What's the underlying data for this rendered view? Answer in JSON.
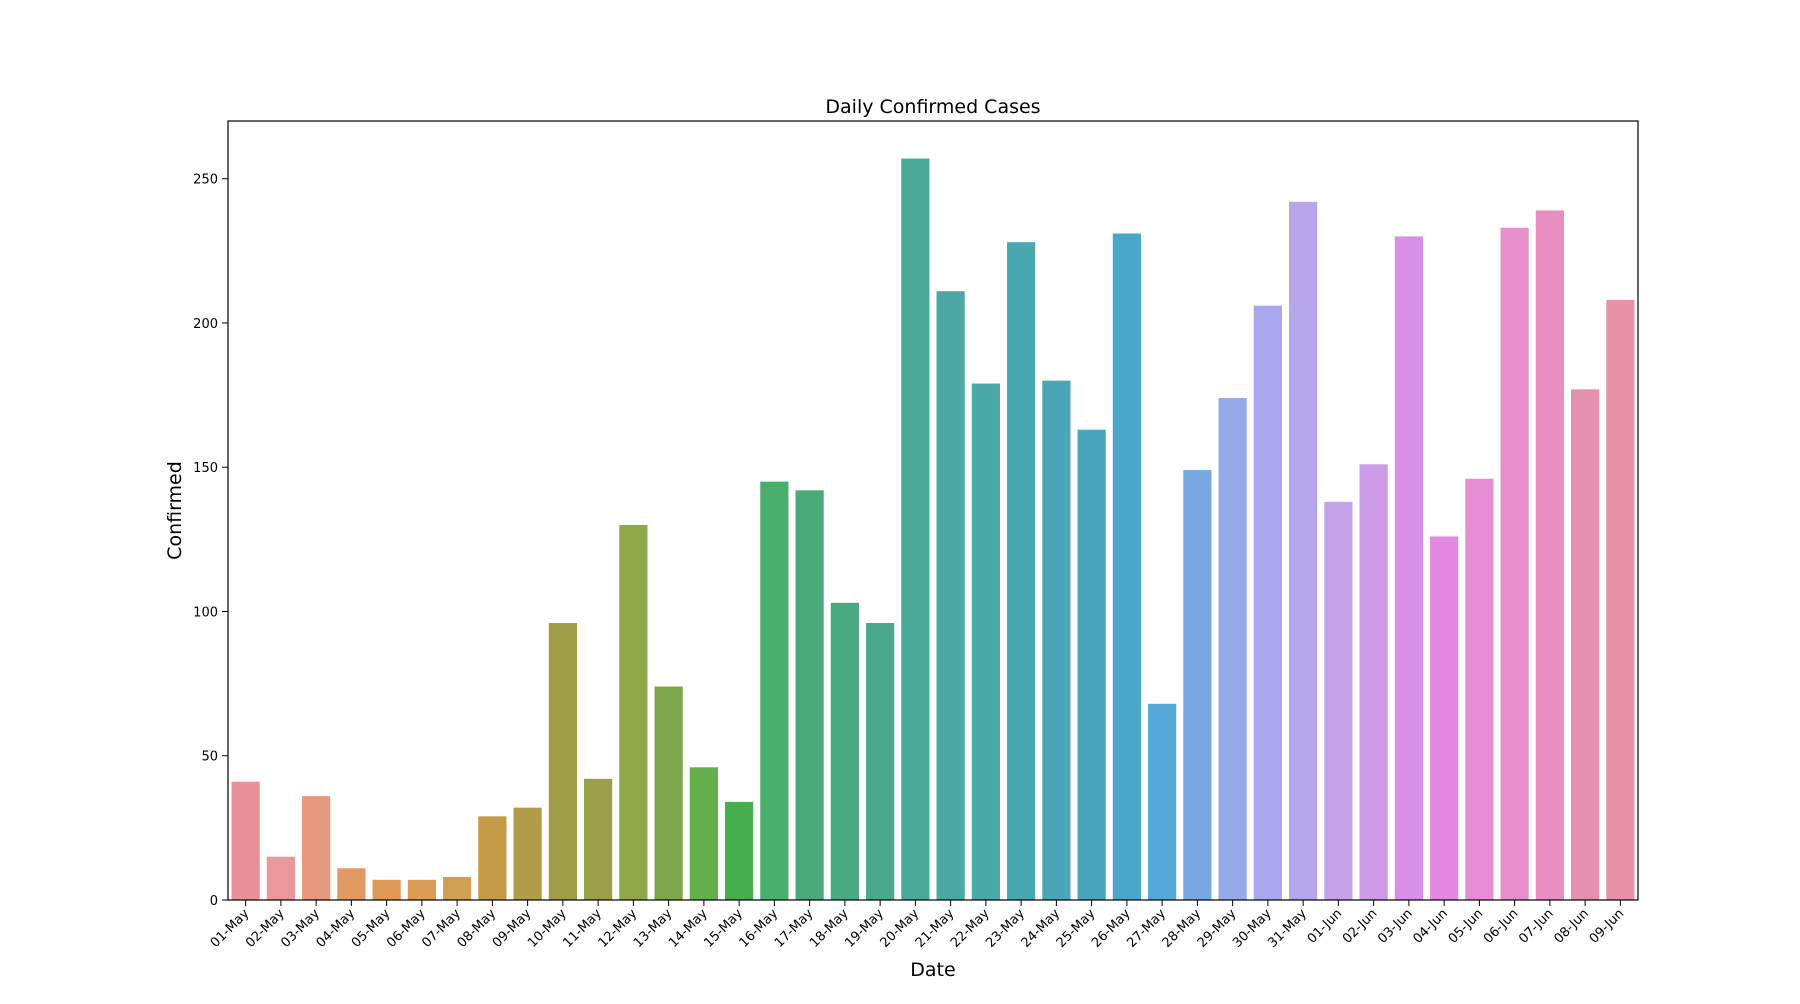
{
  "chart_data": {
    "type": "bar",
    "title": "Daily Confirmed Cases",
    "xlabel": "Date",
    "ylabel": "Confirmed",
    "ylim": [
      0,
      270
    ],
    "yticks": [
      0,
      50,
      100,
      150,
      200,
      250
    ],
    "grid": false,
    "legend": "none",
    "categories": [
      "01-May",
      "02-May",
      "03-May",
      "04-May",
      "05-May",
      "06-May",
      "07-May",
      "08-May",
      "09-May",
      "10-May",
      "11-May",
      "12-May",
      "13-May",
      "14-May",
      "15-May",
      "16-May",
      "17-May",
      "18-May",
      "19-May",
      "20-May",
      "21-May",
      "22-May",
      "23-May",
      "24-May",
      "25-May",
      "26-May",
      "27-May",
      "28-May",
      "29-May",
      "30-May",
      "31-May",
      "01-Jun",
      "02-Jun",
      "03-Jun",
      "04-Jun",
      "05-Jun",
      "06-Jun",
      "07-Jun",
      "08-Jun",
      "09-Jun"
    ],
    "values": [
      41,
      15,
      36,
      11,
      7,
      7,
      8,
      29,
      32,
      96,
      42,
      130,
      74,
      46,
      34,
      145,
      142,
      103,
      96,
      257,
      211,
      179,
      228,
      180,
      163,
      231,
      68,
      149,
      174,
      206,
      242,
      138,
      151,
      230,
      126,
      146,
      233,
      239,
      177,
      208
    ],
    "colors": [
      "#e8919a",
      "#e9999b",
      "#e7987f",
      "#e19a63",
      "#df9a58",
      "#d99d54",
      "#d0a153",
      "#c49b49",
      "#b19c49",
      "#a09d48",
      "#9a9f4a",
      "#8fa84a",
      "#80a64c",
      "#63b04d",
      "#48ad4c",
      "#4aae6e",
      "#4aaa7c",
      "#49a982",
      "#4aa98a",
      "#4aab9a",
      "#4aa9a3",
      "#49aaa8",
      "#4aa8b0",
      "#4aa6b6",
      "#4aa6bd",
      "#4aa7c9",
      "#55a9d9",
      "#78a8e1",
      "#96a9e8",
      "#a9a8ec",
      "#b6a6ea",
      "#c2a2e8",
      "#cb9be6",
      "#d890e6",
      "#e28ae3",
      "#e68dd4",
      "#e68fca",
      "#e68fc0",
      "#e690b0",
      "#e693a6"
    ]
  }
}
